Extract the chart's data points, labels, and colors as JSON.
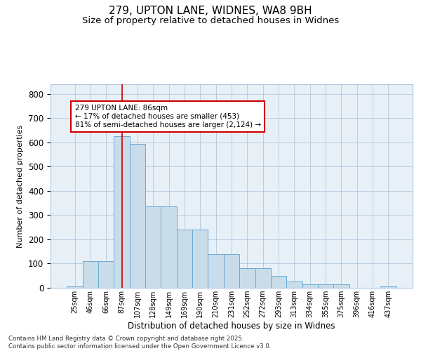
{
  "title1": "279, UPTON LANE, WIDNES, WA8 9BH",
  "title2": "Size of property relative to detached houses in Widnes",
  "xlabel": "Distribution of detached houses by size in Widnes",
  "ylabel": "Number of detached properties",
  "categories": [
    "25sqm",
    "46sqm",
    "66sqm",
    "87sqm",
    "107sqm",
    "128sqm",
    "149sqm",
    "169sqm",
    "190sqm",
    "210sqm",
    "231sqm",
    "252sqm",
    "272sqm",
    "293sqm",
    "313sqm",
    "334sqm",
    "355sqm",
    "375sqm",
    "396sqm",
    "416sqm",
    "437sqm"
  ],
  "bar_values": [
    5,
    110,
    110,
    625,
    595,
    335,
    335,
    240,
    240,
    140,
    140,
    80,
    80,
    50,
    25,
    15,
    15,
    15,
    0,
    0,
    5
  ],
  "bar_color": "#c9dcea",
  "bar_edge_color": "#6aaad4",
  "vline_x": 3,
  "vline_color": "#cc0000",
  "annotation_text": "279 UPTON LANE: 86sqm\n← 17% of detached houses are smaller (453)\n81% of semi-detached houses are larger (2,124) →",
  "annotation_box_color": "#ffffff",
  "annotation_box_edgecolor": "#cc0000",
  "ylim": [
    0,
    840
  ],
  "yticks": [
    0,
    100,
    200,
    300,
    400,
    500,
    600,
    700,
    800
  ],
  "background_color": "#e8f0f7",
  "footer": "Contains HM Land Registry data © Crown copyright and database right 2025.\nContains public sector information licensed under the Open Government Licence v3.0.",
  "title_fontsize": 11,
  "subtitle_fontsize": 9.5
}
